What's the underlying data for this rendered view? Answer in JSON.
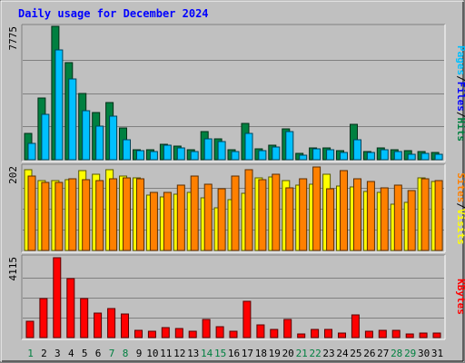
{
  "chart_data": {
    "type": "bar",
    "title": "Daily usage for December 2024",
    "categories": [
      "1",
      "2",
      "3",
      "4",
      "5",
      "6",
      "7",
      "8",
      "9",
      "10",
      "11",
      "12",
      "13",
      "14",
      "15",
      "16",
      "17",
      "18",
      "19",
      "20",
      "21",
      "22",
      "23",
      "24",
      "25",
      "26",
      "27",
      "28",
      "29",
      "30",
      "31"
    ],
    "weekend_days": [
      "1",
      "7",
      "8",
      "14",
      "15",
      "21",
      "22",
      "28",
      "29"
    ],
    "colors": {
      "title": "#0000ff",
      "day_label": "#000000",
      "weekend_label": "#008040",
      "hits": "#008040",
      "files": "#00c0ff",
      "pages": "#00c0ff",
      "visits": "#ffff00",
      "sites": "#ff8000",
      "kbytes": "#ff0000",
      "panel_bg": "#c0c0c0",
      "gridline": "#808080"
    },
    "panels": [
      {
        "id": "hits-files-pages",
        "ymax_label": "7775",
        "ylim": [
          0,
          7775
        ],
        "legend": [
          {
            "text": "Pages",
            "color": "#00c0ff"
          },
          {
            "text": "/",
            "color": "#000000"
          },
          {
            "text": "Files",
            "color": "#0000ff"
          },
          {
            "text": "/",
            "color": "#000000"
          },
          {
            "text": "Hits",
            "color": "#008040"
          }
        ],
        "series": [
          {
            "name": "Hits",
            "color": "#008040",
            "values": [
              1546,
              3610,
              7775,
              5669,
              3868,
              2758,
              3310,
              1847,
              596,
              566,
              921,
              793,
              576,
              1659,
              1207,
              589,
              2120,
              649,
              861,
              1815,
              354,
              690,
              674,
              511,
              2089,
              476,
              668,
              599,
              505,
              489,
              426
            ]
          },
          {
            "name": "Files",
            "color": "#00c0ff",
            "values": [
              945,
              2654,
              6412,
              4695,
              2872,
              1960,
              2528,
              1141,
              541,
              490,
              869,
              683,
              499,
              1208,
              1033,
              471,
              1543,
              544,
              739,
              1628,
              271,
              619,
              587,
              438,
              1163,
              424,
              578,
              496,
              309,
              364,
              304
            ]
          }
        ]
      },
      {
        "id": "visits-sites",
        "ymax_label": "202",
        "ylim": [
          0,
          202
        ],
        "legend": [
          {
            "text": "Sites",
            "color": "#ff8000"
          },
          {
            "text": "/",
            "color": "#000000"
          },
          {
            "text": "Visits",
            "color": "#ffff00"
          }
        ],
        "series": [
          {
            "name": "Visits",
            "color": "#ffff00",
            "values": [
              196,
              170,
              170,
              172,
              193,
              185,
              196,
              180,
              176,
              135,
              130,
              137,
              140,
              128,
              103,
              122,
              139,
              175,
              177,
              168,
              157,
              160,
              184,
              156,
              154,
              143,
              140,
              111,
              116,
              175,
              166
            ]
          },
          {
            "name": "Sites",
            "color": "#ff8000",
            "values": [
              180,
              164,
              165,
              174,
              172,
              170,
              174,
              176,
              174,
              140,
              141,
              159,
              181,
              161,
              149,
              179,
              195,
              172,
              184,
              151,
              174,
              202,
              149,
              193,
              174,
              166,
              152,
              157,
              144,
              174,
              169
            ]
          }
        ]
      },
      {
        "id": "kbytes",
        "ymax_label": "4115",
        "ylim": [
          0,
          4115
        ],
        "legend": [
          {
            "text": "KBytes",
            "color": "#ff0000"
          }
        ],
        "series": [
          {
            "name": "KBytes",
            "color": "#ff0000",
            "values": [
              849,
              1999,
              4115,
              3059,
              2025,
              1265,
              1478,
              1239,
              359,
              335,
              511,
              470,
              325,
              958,
              543,
              329,
              1861,
              648,
              442,
              913,
              204,
              399,
              418,
              224,
              1188,
              325,
              378,
              362,
              169,
              211,
              229
            ]
          }
        ]
      }
    ]
  }
}
